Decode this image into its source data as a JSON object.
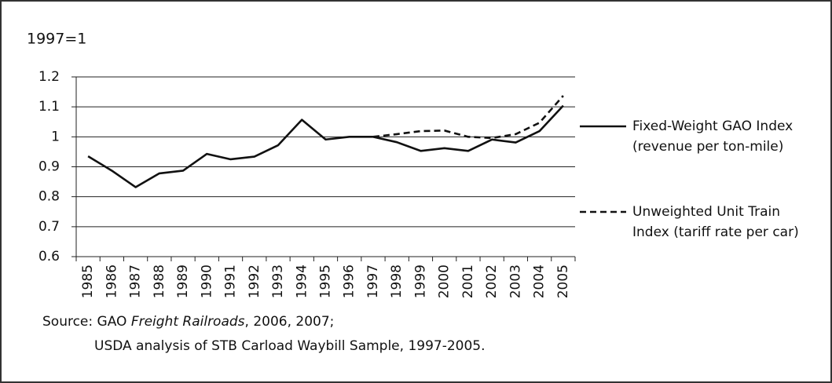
{
  "chart_data": {
    "type": "line",
    "ylabel": "1997=1",
    "categories": [
      "1985",
      "1986",
      "1987",
      "1988",
      "1989",
      "1990",
      "1991",
      "1992",
      "1993",
      "1994",
      "1995",
      "1996",
      "1997",
      "1998",
      "1999",
      "2000",
      "2001",
      "2002",
      "2003",
      "2004",
      "2005"
    ],
    "series": [
      {
        "name": "Fixed-Weight GAO Index (revenue per ton-mile)",
        "color": "#111111",
        "dash": false,
        "values": [
          0.935,
          0.887,
          0.832,
          0.878,
          0.887,
          0.943,
          0.925,
          0.934,
          0.972,
          1.057,
          0.991,
          1.0,
          1.0,
          0.982,
          0.953,
          0.962,
          0.953,
          0.991,
          0.981,
          1.019,
          1.104
        ]
      },
      {
        "name": "Unweighted Unit Train Index (tariff rate per car)",
        "color": "#111111",
        "dash": true,
        "values": [
          null,
          null,
          null,
          null,
          null,
          null,
          null,
          null,
          null,
          null,
          null,
          null,
          1.0,
          1.009,
          1.019,
          1.021,
          1.0,
          0.996,
          1.009,
          1.047,
          1.137
        ]
      }
    ],
    "ylim": [
      0.6,
      1.2
    ],
    "yticks": [
      0.6,
      0.7,
      0.8,
      0.9,
      1,
      1.1,
      1.2
    ],
    "grid": true,
    "source": {
      "prefix": "Source: GAO ",
      "italic": "Freight Railroads",
      "suffix": ", 2006, 2007;",
      "line2": "USDA analysis of STB Carload Waybill Sample, 1997-2005."
    }
  }
}
